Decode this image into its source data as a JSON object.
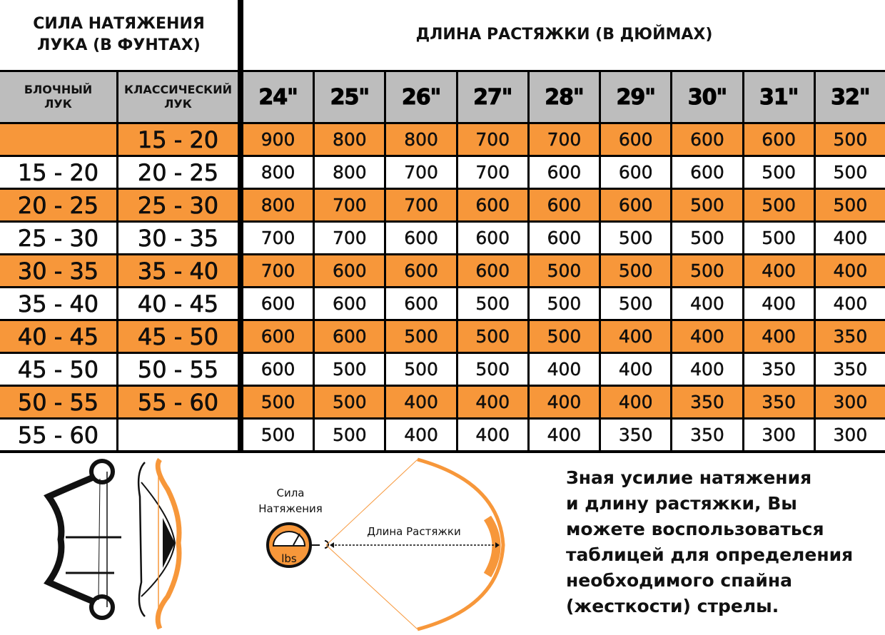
{
  "header": {
    "left_title_line1": "СИЛА НАТЯЖЕНИЯ",
    "left_title_line2": "ЛУКА (В ФУНТАХ)",
    "right_title": "ДЛИНА РАСТЯЖКИ (В ДЮЙМАХ)"
  },
  "subheader": {
    "compound_line1": "БЛОЧНЫЙ",
    "compound_line2": "ЛУК",
    "recurve_line1": "КЛАССИЧЕСКИЙ",
    "recurve_line2": "ЛУК",
    "draw_lengths": [
      "24\"",
      "25\"",
      "26\"",
      "27\"",
      "28\"",
      "29\"",
      "30\"",
      "31\"",
      "32\""
    ]
  },
  "rows": [
    {
      "compound": "",
      "recurve": "15 - 20",
      "values": [
        "900",
        "800",
        "800",
        "700",
        "700",
        "600",
        "600",
        "600",
        "500"
      ]
    },
    {
      "compound": "15 - 20",
      "recurve": "20 - 25",
      "values": [
        "800",
        "800",
        "700",
        "700",
        "600",
        "600",
        "600",
        "500",
        "500"
      ]
    },
    {
      "compound": "20 - 25",
      "recurve": "25 - 30",
      "values": [
        "800",
        "700",
        "700",
        "600",
        "600",
        "600",
        "500",
        "500",
        "500"
      ]
    },
    {
      "compound": "25 - 30",
      "recurve": "30 - 35",
      "values": [
        "700",
        "700",
        "600",
        "600",
        "600",
        "500",
        "500",
        "500",
        "400"
      ]
    },
    {
      "compound": "30 - 35",
      "recurve": "35 - 40",
      "values": [
        "700",
        "600",
        "600",
        "600",
        "500",
        "500",
        "500",
        "400",
        "400"
      ]
    },
    {
      "compound": "35 - 40",
      "recurve": "40 - 45",
      "values": [
        "600",
        "600",
        "600",
        "500",
        "500",
        "500",
        "400",
        "400",
        "400"
      ]
    },
    {
      "compound": "40 - 45",
      "recurve": "45 - 50",
      "values": [
        "600",
        "600",
        "500",
        "500",
        "500",
        "400",
        "400",
        "400",
        "350"
      ]
    },
    {
      "compound": "45 - 50",
      "recurve": "50 - 55",
      "values": [
        "600",
        "500",
        "500",
        "500",
        "400",
        "400",
        "400",
        "350",
        "350"
      ]
    },
    {
      "compound": "50 - 55",
      "recurve": "55 - 60",
      "values": [
        "500",
        "500",
        "400",
        "400",
        "400",
        "400",
        "350",
        "350",
        "300"
      ]
    },
    {
      "compound": "55 - 60",
      "recurve": "",
      "values": [
        "500",
        "500",
        "400",
        "400",
        "400",
        "350",
        "350",
        "300",
        "300"
      ]
    }
  ],
  "diagram": {
    "force_line1": "Сила",
    "force_line2": "Натяжения",
    "gauge_unit": "lbs",
    "draw_length_label": "Длина Растяжки"
  },
  "note": [
    "Зная усилие натяжения",
    "и длину растяжки, Вы",
    "можете воспользоваться",
    "таблицей для определения",
    "необходимого спайна",
    "(жесткости) стрелы."
  ],
  "colors": {
    "orange": "#f7973a",
    "gray": "#bdbdbd",
    "border": "#000000"
  }
}
